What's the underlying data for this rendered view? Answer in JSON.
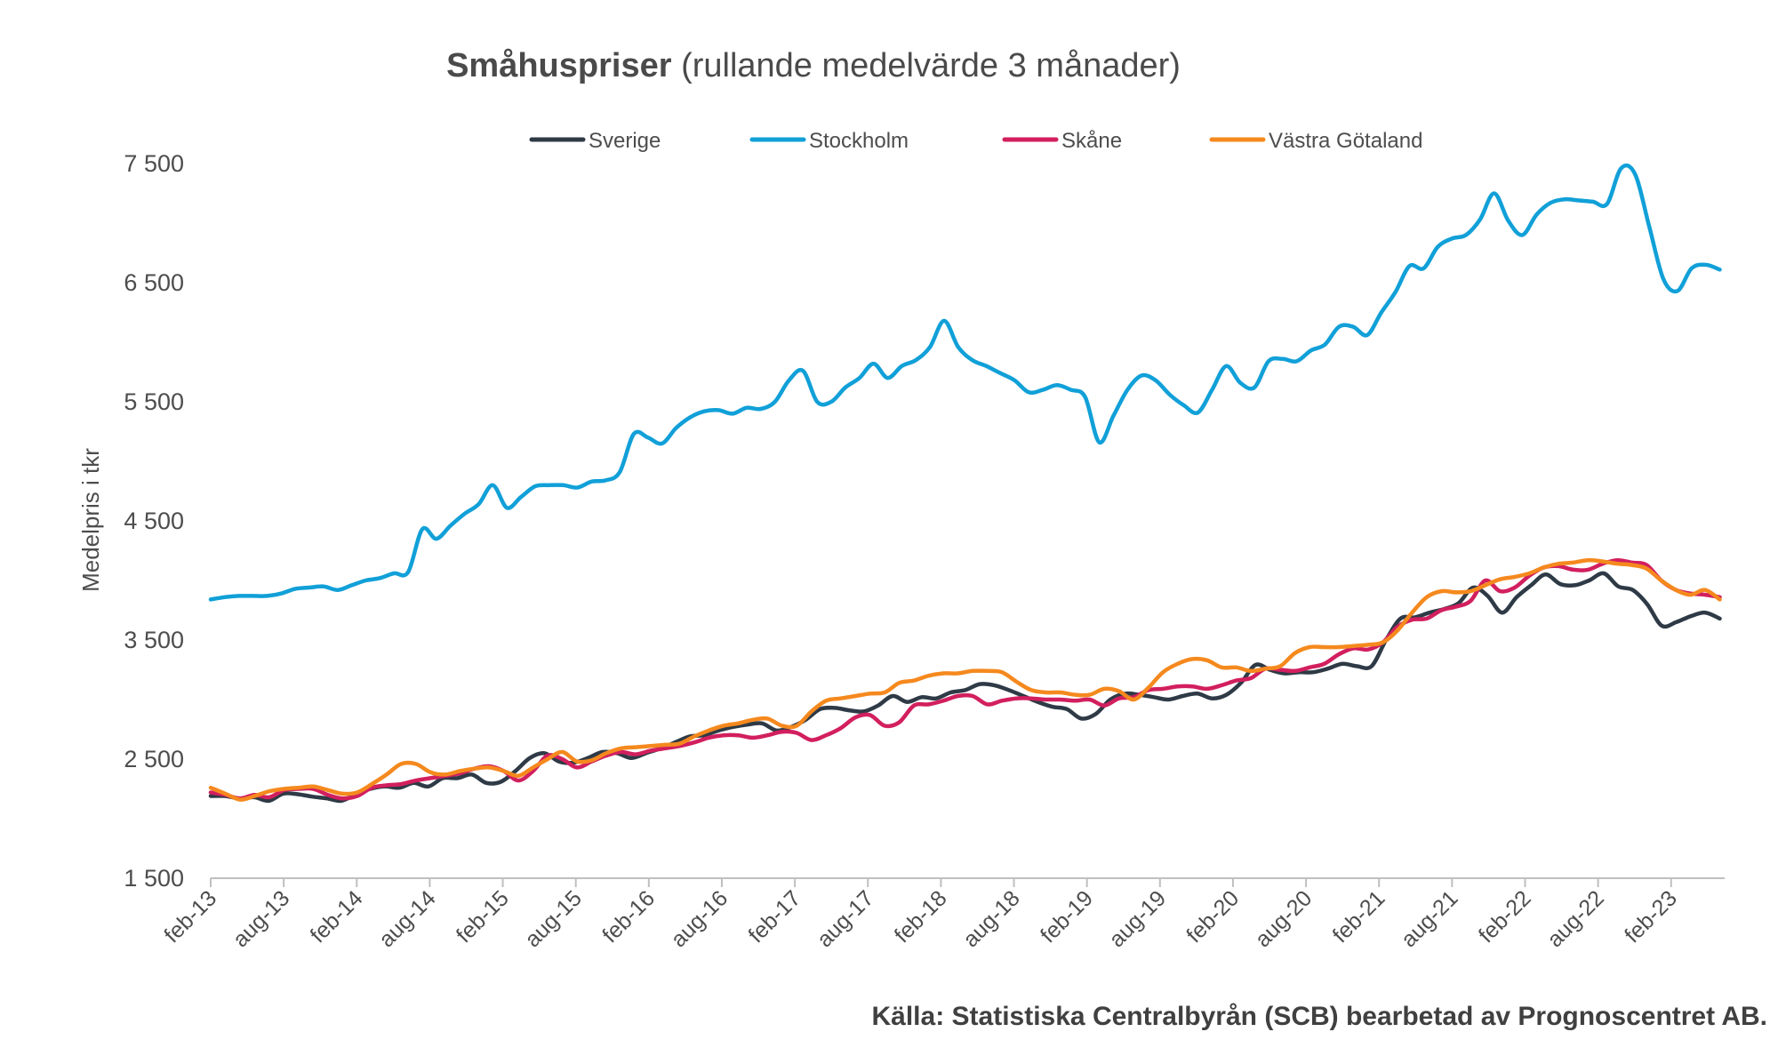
{
  "chart_data": {
    "type": "line",
    "title_bold": "Småhuspriser",
    "title_rest": " (rullande medelvärde 3 månader)",
    "ylabel": "Medelpris i tkr",
    "xlabel": "",
    "ylim": [
      1500,
      7500
    ],
    "yticks": [
      1500,
      2500,
      3500,
      4500,
      5500,
      6500,
      7500
    ],
    "ytick_labels": [
      "1 500",
      "2 500",
      "3 500",
      "4 500",
      "5 500",
      "6 500",
      "7 500"
    ],
    "x_start": "2013-02",
    "x_end": "2023-06",
    "xticks": [
      "feb-13",
      "aug-13",
      "feb-14",
      "aug-14",
      "feb-15",
      "aug-15",
      "feb-16",
      "aug-16",
      "feb-17",
      "aug-17",
      "feb-18",
      "aug-18",
      "feb-19",
      "aug-19",
      "feb-20",
      "aug-20",
      "feb-21",
      "aug-21",
      "feb-22",
      "aug-22",
      "feb-23"
    ],
    "legend_placement": "top",
    "grid": false,
    "series": [
      {
        "name": "Sverige",
        "color": "#2e3a46",
        "values": [
          2190,
          2190,
          2170,
          2180,
          2150,
          2210,
          2205,
          2185,
          2170,
          2150,
          2205,
          2250,
          2270,
          2260,
          2300,
          2270,
          2340,
          2340,
          2370,
          2300,
          2310,
          2400,
          2510,
          2550,
          2480,
          2470,
          2510,
          2560,
          2550,
          2510,
          2550,
          2590,
          2640,
          2690,
          2700,
          2740,
          2770,
          2790,
          2800,
          2740,
          2770,
          2830,
          2920,
          2930,
          2910,
          2900,
          2950,
          3030,
          2980,
          3020,
          3010,
          3060,
          3080,
          3130,
          3120,
          3080,
          3030,
          2980,
          2940,
          2920,
          2840,
          2880,
          3000,
          3050,
          3040,
          3020,
          3000,
          3030,
          3050,
          3010,
          3040,
          3140,
          3290,
          3250,
          3220,
          3230,
          3230,
          3260,
          3300,
          3280,
          3280,
          3500,
          3680,
          3690,
          3730,
          3760,
          3810,
          3940,
          3870,
          3730,
          3860,
          3960,
          4050,
          3970,
          3960,
          4000,
          4060,
          3950,
          3920,
          3800,
          3620,
          3650,
          3700,
          3730,
          3680
        ]
      },
      {
        "name": "Stockholm",
        "color": "#11a0d8",
        "values": [
          3840,
          3860,
          3870,
          3870,
          3870,
          3890,
          3930,
          3940,
          3950,
          3920,
          3960,
          4000,
          4020,
          4060,
          4070,
          4430,
          4350,
          4460,
          4560,
          4640,
          4800,
          4610,
          4700,
          4790,
          4800,
          4800,
          4780,
          4830,
          4840,
          4910,
          5230,
          5200,
          5150,
          5280,
          5370,
          5420,
          5430,
          5400,
          5450,
          5440,
          5500,
          5680,
          5760,
          5500,
          5500,
          5620,
          5700,
          5820,
          5700,
          5800,
          5850,
          5960,
          6180,
          5960,
          5850,
          5800,
          5740,
          5680,
          5580,
          5600,
          5640,
          5600,
          5540,
          5160,
          5380,
          5600,
          5720,
          5680,
          5560,
          5470,
          5410,
          5600,
          5800,
          5660,
          5620,
          5840,
          5860,
          5840,
          5930,
          5980,
          6130,
          6130,
          6060,
          6250,
          6420,
          6640,
          6620,
          6800,
          6870,
          6900,
          7030,
          7250,
          7020,
          6900,
          7070,
          7170,
          7200,
          7190,
          7180,
          7160,
          7460,
          7410,
          6970,
          6530,
          6430,
          6620,
          6650,
          6610
        ]
      },
      {
        "name": "Skåne",
        "color": "#d21f5e",
        "values": [
          2220,
          2200,
          2170,
          2200,
          2180,
          2240,
          2250,
          2250,
          2200,
          2170,
          2190,
          2260,
          2280,
          2290,
          2320,
          2340,
          2360,
          2380,
          2420,
          2440,
          2400,
          2320,
          2400,
          2530,
          2500,
          2430,
          2480,
          2530,
          2560,
          2540,
          2570,
          2590,
          2610,
          2640,
          2680,
          2700,
          2700,
          2680,
          2700,
          2730,
          2720,
          2660,
          2700,
          2760,
          2850,
          2870,
          2780,
          2810,
          2950,
          2960,
          2990,
          3030,
          3030,
          2960,
          2990,
          3010,
          3010,
          3000,
          3000,
          2990,
          3000,
          2950,
          3010,
          3020,
          3080,
          3090,
          3110,
          3110,
          3090,
          3120,
          3160,
          3180,
          3260,
          3250,
          3240,
          3270,
          3300,
          3380,
          3430,
          3420,
          3480,
          3610,
          3670,
          3680,
          3750,
          3780,
          3830,
          4000,
          3910,
          3940,
          4040,
          4110,
          4120,
          4090,
          4090,
          4140,
          4170,
          4150,
          4130,
          4000,
          3920,
          3890,
          3880,
          3860
        ]
      },
      {
        "name": "Västra Götaland",
        "color": "#f5891e",
        "values": [
          2260,
          2210,
          2160,
          2190,
          2230,
          2250,
          2260,
          2270,
          2240,
          2210,
          2220,
          2290,
          2370,
          2460,
          2460,
          2390,
          2370,
          2400,
          2420,
          2430,
          2400,
          2360,
          2430,
          2500,
          2560,
          2480,
          2490,
          2550,
          2590,
          2600,
          2610,
          2620,
          2630,
          2690,
          2740,
          2780,
          2800,
          2830,
          2840,
          2780,
          2780,
          2900,
          2990,
          3010,
          3030,
          3050,
          3060,
          3140,
          3160,
          3200,
          3220,
          3220,
          3240,
          3240,
          3230,
          3150,
          3080,
          3060,
          3060,
          3040,
          3040,
          3090,
          3070,
          3000,
          3100,
          3230,
          3300,
          3340,
          3330,
          3270,
          3270,
          3240,
          3260,
          3280,
          3390,
          3440,
          3440,
          3440,
          3450,
          3460,
          3480,
          3580,
          3730,
          3860,
          3910,
          3900,
          3910,
          3960,
          4010,
          4030,
          4060,
          4110,
          4140,
          4150,
          4170,
          4160,
          4140,
          4130,
          4100,
          4000,
          3920,
          3880,
          3920,
          3840
        ]
      }
    ]
  }
}
